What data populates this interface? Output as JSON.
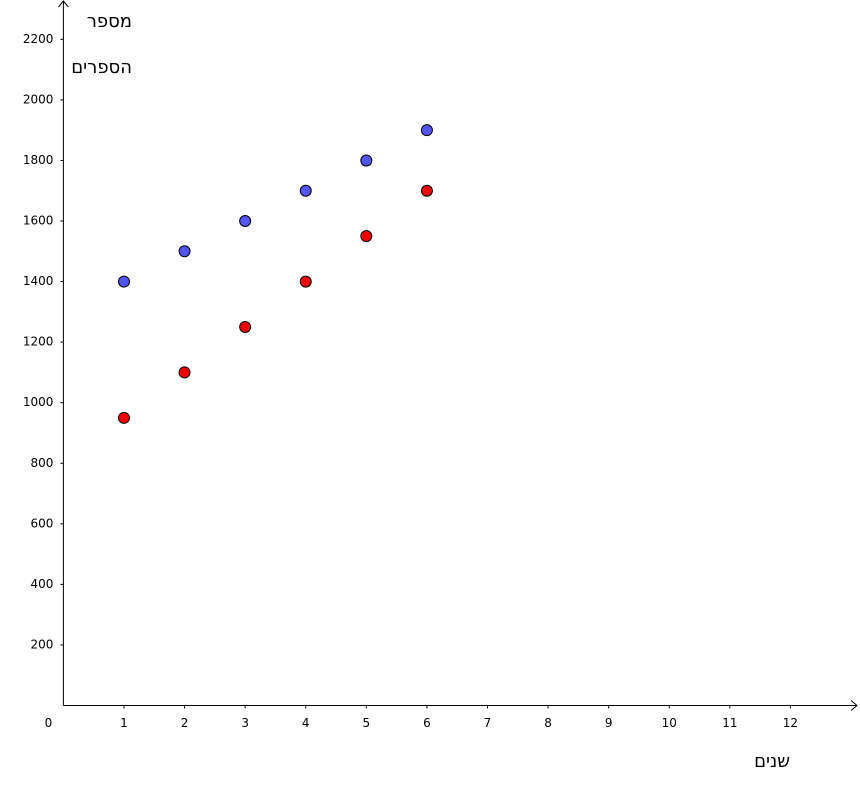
{
  "chart_data": {
    "type": "scatter",
    "y_label": [
      "מספר",
      "הספרים"
    ],
    "x_label": "שנים",
    "x": [
      1,
      2,
      3,
      4,
      5,
      6
    ],
    "series": [
      {
        "color": "#5454f0",
        "values": [
          1400,
          1500,
          1600,
          1700,
          1800,
          1900
        ]
      },
      {
        "color": "#ee0000",
        "values": [
          950,
          1100,
          1250,
          1400,
          1550,
          1700
        ]
      }
    ],
    "xlim": [
      0,
      13
    ],
    "ylim": [
      0,
      2320
    ],
    "xticks": [
      0,
      1,
      2,
      3,
      4,
      5,
      6,
      7,
      8,
      9,
      10,
      11,
      12
    ],
    "yticks": [
      200,
      400,
      600,
      800,
      1000,
      1200,
      1400,
      1600,
      1800,
      2000,
      2200
    ],
    "grid": false
  }
}
